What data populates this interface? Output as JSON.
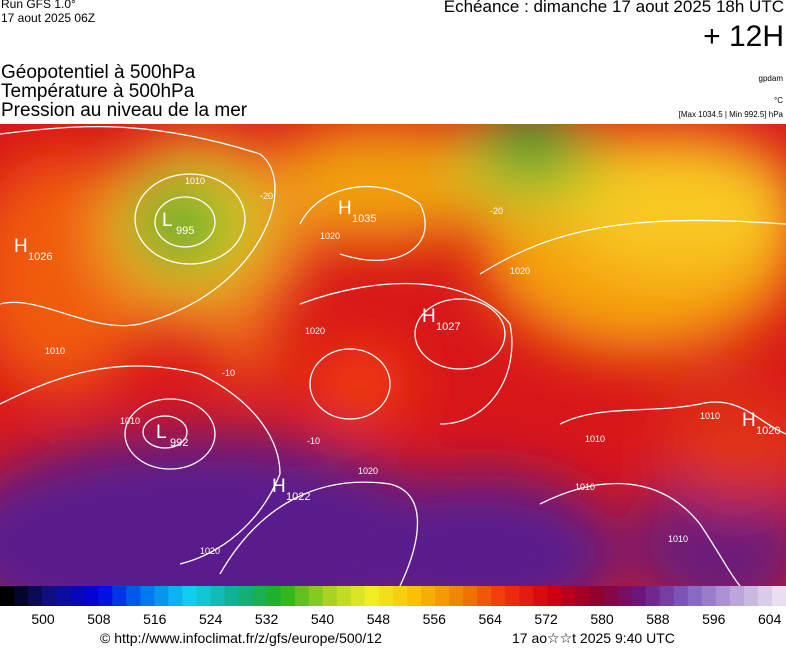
{
  "header": {
    "run": "Run GFS 1.0°",
    "run_date": "17 aout 2025 06Z",
    "valid": "Echéance : dimanche 17 aout 2025 18h UTC",
    "lead": "+ 12H",
    "fields": [
      "Géopotentiel à 500hPa",
      "Température à 500hPa",
      "Pression au niveau de la mer"
    ],
    "units": [
      "gpdam",
      "°C",
      "[Max 1034.5 | Min 992.5] hPa"
    ]
  },
  "map": {
    "centers": [
      {
        "letter": "H",
        "value": 1026
      },
      {
        "letter": "L",
        "value": 995
      },
      {
        "letter": "H",
        "value": 1035
      },
      {
        "letter": "H",
        "value": 1027
      },
      {
        "letter": "L",
        "value": 992
      },
      {
        "letter": "H",
        "value": 1022
      },
      {
        "letter": "H",
        "value": 1020
      }
    ],
    "contour_labels": [
      "1010",
      "1020",
      "-20",
      "-20",
      "1010",
      "1020",
      "1020",
      "-10",
      "1010",
      "-10",
      "1020",
      "1010",
      "1010",
      "1010",
      "1010",
      "1020"
    ]
  },
  "colorbar": {
    "labels": [
      500,
      508,
      516,
      524,
      532,
      540,
      548,
      556,
      564,
      572,
      580,
      588,
      596,
      604
    ]
  },
  "footer": {
    "source": "© http://www.infoclimat.fr/z/gfs/europe/500/12",
    "generated": "17 ao☆☆t 2025  9:40 UTC"
  }
}
